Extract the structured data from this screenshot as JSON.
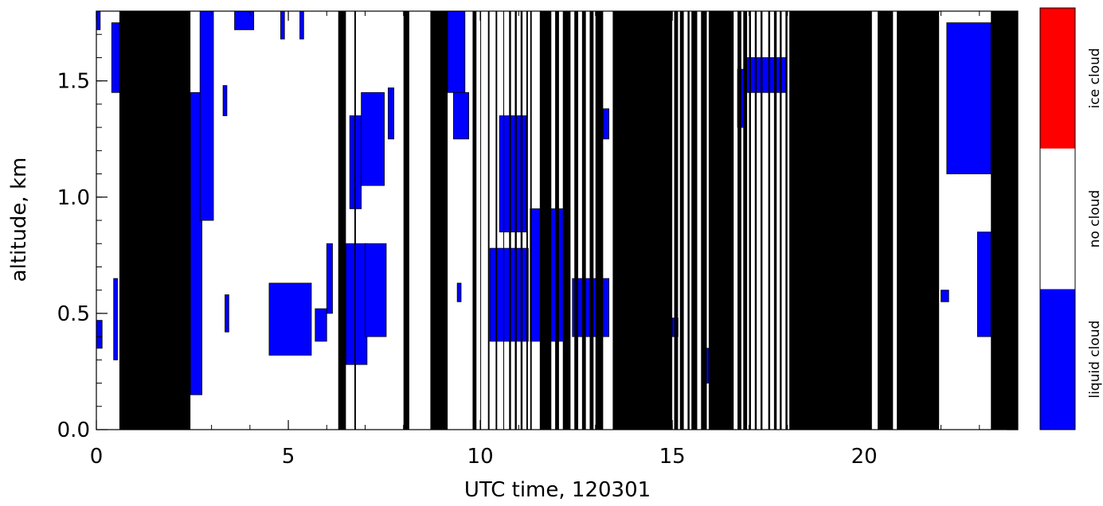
{
  "chart_data": {
    "type": "heatmap",
    "title": "",
    "xlabel": "UTC time, 120301",
    "ylabel": "altitude, km",
    "xlim": [
      0,
      24
    ],
    "ylim": [
      0,
      1.8
    ],
    "x_ticks": [
      0,
      5,
      10,
      15,
      20
    ],
    "x_tick_labels": [
      "0",
      "5",
      "10",
      "15",
      "20"
    ],
    "y_ticks": [
      0.0,
      0.5,
      1.0,
      1.5
    ],
    "y_tick_labels": [
      "0.0",
      "0.5",
      "1.0",
      "1.5"
    ],
    "colors": {
      "liquid": "#0000ff",
      "none": "#ffffff",
      "ice": "#ff0000",
      "missing": "#000000"
    },
    "colorbar": {
      "labels": [
        "liquid cloud",
        "no cloud",
        "ice cloud"
      ],
      "colors": [
        "#0000ff",
        "#ffffff",
        "#ff0000"
      ]
    },
    "missing_data_intervals": [
      [
        0.6,
        2.45
      ],
      [
        6.3,
        6.5
      ],
      [
        6.72,
        6.76
      ],
      [
        8.0,
        8.15
      ],
      [
        8.7,
        9.15
      ],
      [
        9.8,
        9.9
      ],
      [
        10.0,
        10.02
      ],
      [
        10.2,
        10.24
      ],
      [
        10.4,
        10.44
      ],
      [
        10.6,
        10.62
      ],
      [
        10.75,
        10.8
      ],
      [
        10.9,
        10.95
      ],
      [
        11.05,
        11.1
      ],
      [
        11.2,
        11.24
      ],
      [
        11.3,
        11.34
      ],
      [
        11.55,
        11.85
      ],
      [
        11.95,
        12.05
      ],
      [
        12.15,
        12.35
      ],
      [
        12.45,
        12.55
      ],
      [
        12.65,
        12.75
      ],
      [
        12.85,
        12.95
      ],
      [
        13.0,
        13.2
      ],
      [
        13.45,
        15.0
      ],
      [
        15.05,
        15.15
      ],
      [
        15.2,
        15.3
      ],
      [
        15.4,
        15.45
      ],
      [
        15.5,
        15.65
      ],
      [
        15.75,
        15.9
      ],
      [
        15.95,
        16.6
      ],
      [
        16.7,
        16.8
      ],
      [
        16.85,
        16.95
      ],
      [
        17.0,
        17.05
      ],
      [
        17.15,
        17.2
      ],
      [
        17.3,
        17.35
      ],
      [
        17.5,
        17.55
      ],
      [
        17.65,
        17.72
      ],
      [
        17.8,
        17.85
      ],
      [
        17.95,
        18.0
      ],
      [
        18.05,
        20.2
      ],
      [
        20.35,
        20.75
      ],
      [
        20.85,
        21.95
      ],
      [
        23.3,
        24.0
      ]
    ],
    "liquid_cloud_regions": [
      {
        "x": [
          0.0,
          0.15
        ],
        "y": [
          0.35,
          0.47
        ]
      },
      {
        "x": [
          0.0,
          0.1
        ],
        "y": [
          1.72,
          1.8
        ]
      },
      {
        "x": [
          0.4,
          0.6
        ],
        "y": [
          1.45,
          1.75
        ]
      },
      {
        "x": [
          0.45,
          0.55
        ],
        "y": [
          0.3,
          0.65
        ]
      },
      {
        "x": [
          2.45,
          2.75
        ],
        "y": [
          0.15,
          1.45
        ]
      },
      {
        "x": [
          2.7,
          3.05
        ],
        "y": [
          0.9,
          1.8
        ]
      },
      {
        "x": [
          3.35,
          3.45
        ],
        "y": [
          0.42,
          0.58
        ]
      },
      {
        "x": [
          3.3,
          3.4
        ],
        "y": [
          1.35,
          1.48
        ]
      },
      {
        "x": [
          3.6,
          4.1
        ],
        "y": [
          1.72,
          1.8
        ]
      },
      {
        "x": [
          4.8,
          4.9
        ],
        "y": [
          1.68,
          1.8
        ]
      },
      {
        "x": [
          5.3,
          5.4
        ],
        "y": [
          1.68,
          1.8
        ]
      },
      {
        "x": [
          4.5,
          5.6
        ],
        "y": [
          0.32,
          0.63
        ]
      },
      {
        "x": [
          5.7,
          6.0
        ],
        "y": [
          0.38,
          0.52
        ]
      },
      {
        "x": [
          6.0,
          6.15
        ],
        "y": [
          0.5,
          0.8
        ]
      },
      {
        "x": [
          6.5,
          7.05
        ],
        "y": [
          0.28,
          0.8
        ]
      },
      {
        "x": [
          6.6,
          6.9
        ],
        "y": [
          0.95,
          1.35
        ]
      },
      {
        "x": [
          7.0,
          7.55
        ],
        "y": [
          0.4,
          0.8
        ]
      },
      {
        "x": [
          6.9,
          7.5
        ],
        "y": [
          1.05,
          1.45
        ]
      },
      {
        "x": [
          7.6,
          7.75
        ],
        "y": [
          1.25,
          1.47
        ]
      },
      {
        "x": [
          9.15,
          9.6
        ],
        "y": [
          1.45,
          1.8
        ]
      },
      {
        "x": [
          9.3,
          9.7
        ],
        "y": [
          1.25,
          1.45
        ]
      },
      {
        "x": [
          9.4,
          9.5
        ],
        "y": [
          0.55,
          0.63
        ]
      },
      {
        "x": [
          10.25,
          11.25
        ],
        "y": [
          0.38,
          0.78
        ]
      },
      {
        "x": [
          10.5,
          11.2
        ],
        "y": [
          0.85,
          1.35
        ]
      },
      {
        "x": [
          11.3,
          12.3
        ],
        "y": [
          0.38,
          0.95
        ]
      },
      {
        "x": [
          12.4,
          13.35
        ],
        "y": [
          0.4,
          0.65
        ]
      },
      {
        "x": [
          13.2,
          13.35
        ],
        "y": [
          1.25,
          1.38
        ]
      },
      {
        "x": [
          15.0,
          15.15
        ],
        "y": [
          0.4,
          0.48
        ]
      },
      {
        "x": [
          15.85,
          15.95
        ],
        "y": [
          0.2,
          0.35
        ]
      },
      {
        "x": [
          16.7,
          16.9
        ],
        "y": [
          1.3,
          1.55
        ]
      },
      {
        "x": [
          16.9,
          17.95
        ],
        "y": [
          1.45,
          1.6
        ]
      },
      {
        "x": [
          22.0,
          22.2
        ],
        "y": [
          0.55,
          0.6
        ]
      },
      {
        "x": [
          22.15,
          23.3
        ],
        "y": [
          1.1,
          1.75
        ]
      },
      {
        "x": [
          22.95,
          23.3
        ],
        "y": [
          0.4,
          0.85
        ]
      }
    ]
  }
}
